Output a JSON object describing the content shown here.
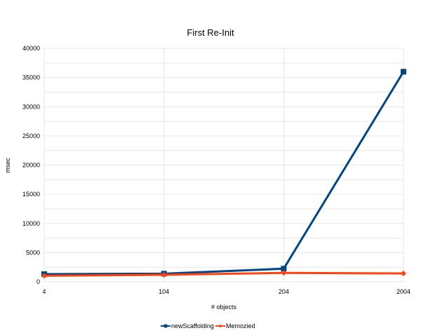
{
  "chart_data": {
    "type": "line",
    "title": "First Re-Init",
    "xlabel": "# objects",
    "ylabel": "msec",
    "categories": [
      "4",
      "104",
      "204",
      "2004"
    ],
    "ylim": [
      0,
      40000
    ],
    "yticks": [
      "0",
      "5000",
      "10000",
      "15000",
      "20000",
      "25000",
      "30000",
      "35000",
      "40000"
    ],
    "grid": true,
    "legend": "bottom",
    "series": [
      {
        "name": "newScaffolding",
        "values": [
          1320,
          1400,
          2250,
          36000
        ],
        "color": "#004586",
        "marker": "square"
      },
      {
        "name": "Memozied",
        "values": [
          1040,
          1200,
          1530,
          1440
        ],
        "color": "#ff420e",
        "marker": "diamond"
      }
    ]
  }
}
